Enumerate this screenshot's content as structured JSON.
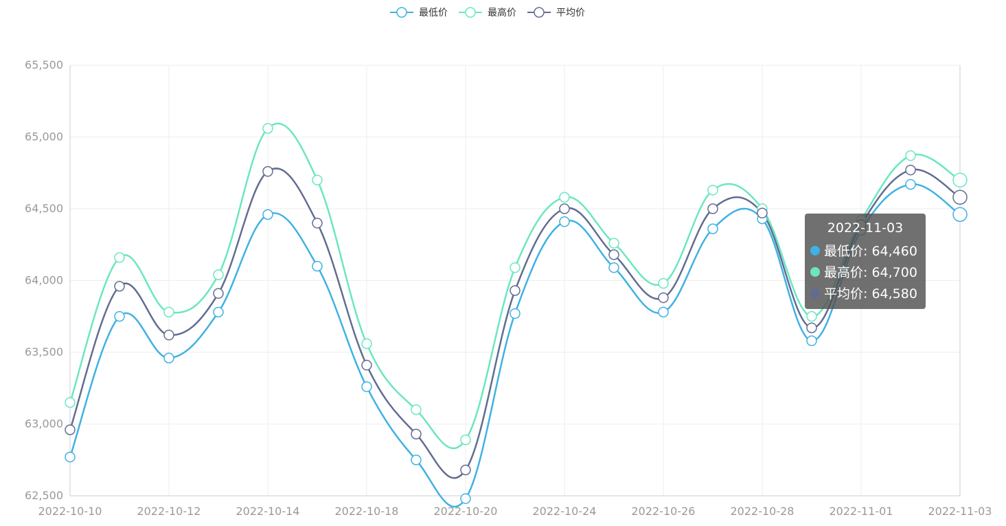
{
  "chart_data": {
    "type": "line",
    "categories": [
      "2022-10-10",
      "2022-10-11",
      "2022-10-12",
      "2022-10-13",
      "2022-10-14",
      "2022-10-15",
      "2022-10-18",
      "2022-10-19",
      "2022-10-20",
      "2022-10-21",
      "2022-10-24",
      "2022-10-25",
      "2022-10-26",
      "2022-10-27",
      "2022-10-28",
      "2022-10-31",
      "2022-11-01",
      "2022-11-02",
      "2022-11-03"
    ],
    "x_tick_labels": [
      "2022-10-10",
      "2022-10-12",
      "2022-10-14",
      "2022-10-18",
      "2022-10-20",
      "2022-10-24",
      "2022-10-26",
      "2022-10-28",
      "2022-11-01",
      "2022-11-03"
    ],
    "series": [
      {
        "name": "最低价",
        "color": "#3fb1e3",
        "values": [
          62770,
          63750,
          63460,
          63780,
          64460,
          64100,
          63260,
          62750,
          62480,
          63770,
          64410,
          64090,
          63780,
          64360,
          64430,
          63580,
          64350,
          64670,
          64460
        ]
      },
      {
        "name": "最高价",
        "color": "#6be6c1",
        "values": [
          63150,
          64160,
          63780,
          64040,
          65060,
          64700,
          63560,
          63100,
          62890,
          64090,
          64580,
          64260,
          63980,
          64630,
          64500,
          63750,
          64420,
          64870,
          64700
        ]
      },
      {
        "name": "平均价",
        "color": "#626c91",
        "values": [
          62960,
          63960,
          63620,
          63910,
          64760,
          64400,
          63410,
          62930,
          62680,
          63930,
          64500,
          64180,
          63880,
          64500,
          64470,
          63670,
          64390,
          64770,
          64580
        ]
      }
    ],
    "ylim": [
      62500,
      65500
    ],
    "yticks": [
      62500,
      63000,
      63500,
      64000,
      64500,
      65000,
      65500
    ],
    "grid": true,
    "legend_position": "top-center"
  },
  "tooltip": {
    "title": "2022-11-03",
    "rows": [
      {
        "label": "最低价: 64,460",
        "color": "#3fb1e3"
      },
      {
        "label": "最高价: 64,700",
        "color": "#6be6c1"
      },
      {
        "label": "平均价: 64,580",
        "color": "#626c91"
      }
    ]
  }
}
